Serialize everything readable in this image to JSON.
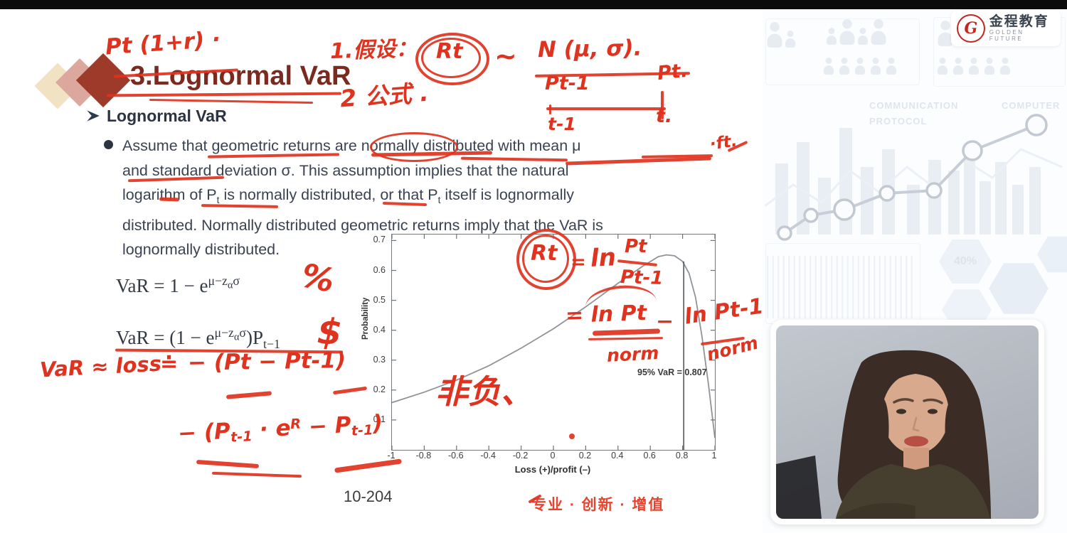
{
  "brand": {
    "name_cn": "金程教育",
    "name_en": "GOLDEN FUTURE"
  },
  "slide": {
    "title": "3.Lognormal VaR",
    "subtitle": "Lognormal VaR",
    "paragraph": {
      "l1": "Assume that geometric returns are normally distributed with mean μ",
      "l2": "and standard deviation σ. This assumption implies that the natural",
      "l3a": "logarithm of P",
      "l3s1": "t",
      "l3b": " is normally distributed, or that P",
      "l3s2": "t",
      "l3c": " itself is lognormally",
      "l4": "distributed. Normally distributed geometric returns imply that the VaR is",
      "l5": "lognormally distributed."
    },
    "formula1": {
      "base": "VaR = 1 − e",
      "expa": "μ−z",
      "expsub": "α",
      "expb": "σ"
    },
    "formula2": {
      "base1": "VaR = (1 − e",
      "expa": "μ−z",
      "expsub": "α",
      "expb": "σ",
      "base2": ")P",
      "sub": "t−1"
    },
    "page_number": "10-204",
    "slogan": "专业 · 创新 · 增值"
  },
  "chart_data": {
    "type": "line",
    "title": "",
    "xlabel": "Loss (+)/profit (–)",
    "ylabel": "Probability",
    "annotation": "95% VaR = 0.807",
    "xlim": [
      -1,
      1
    ],
    "ylim": [
      0,
      0.72
    ],
    "xticks": [
      -1,
      -0.8,
      -0.6,
      -0.4,
      -0.2,
      0,
      0.2,
      0.4,
      0.6,
      0.8,
      1
    ],
    "yticks": [
      0.1,
      0.2,
      0.3,
      0.4,
      0.5,
      0.6,
      0.7
    ],
    "grid": false,
    "legend": false,
    "var_line": {
      "x": 0.807,
      "y_top": 0.63
    },
    "series": [
      {
        "name": "lognormal loss distribution pdf",
        "points": [
          [
            -1,
            0.158
          ],
          [
            -0.8,
            0.193
          ],
          [
            -0.6,
            0.233
          ],
          [
            -0.4,
            0.281
          ],
          [
            -0.2,
            0.34
          ],
          [
            0,
            0.405
          ],
          [
            0.2,
            0.478
          ],
          [
            0.4,
            0.557
          ],
          [
            0.55,
            0.613
          ],
          [
            0.65,
            0.646
          ],
          [
            0.7,
            0.652
          ],
          [
            0.75,
            0.649
          ],
          [
            0.8,
            0.63
          ],
          [
            0.84,
            0.59
          ],
          [
            0.88,
            0.51
          ],
          [
            0.92,
            0.38
          ],
          [
            0.96,
            0.22
          ],
          [
            1,
            0.04
          ]
        ]
      }
    ]
  },
  "handwriting": {
    "above_title": "Pt (1+r) ·",
    "step1": "1.假设：",
    "rt": "Rt",
    "tilde": "~",
    "ndist": "N (μ, σ).",
    "step2": "2 公式 .",
    "p_prev": "Pt-1",
    "p_now": "Pt.",
    "t_prev": "t-1",
    "t_now": "t.",
    "ft": "·ft.",
    "pct": "%",
    "dollar": "$",
    "vl_a": "VaR ≈ loss",
    "vl_b": "≐",
    "vl_c": "− (Pt − Pt-1)",
    "pf_a": "− (P",
    "pf_s1": "t-1",
    "pf_b": " · e",
    "pf_sup": "R",
    "pf_c": " − P",
    "pf_s2": "t-1",
    "pf_d": ")",
    "rt2": "Rt",
    "eq": "=",
    "ln": "ln",
    "frac_num": "Pt",
    "frac_den": "Pt-1",
    "eq2a": "= ln Pt",
    "eq2b": "−",
    "eq2c": "ln Pt-1",
    "norm1": "norm",
    "norm2": "norm",
    "cn_note": "非负、"
  },
  "watermarks": {
    "w1": "COMMUNICATION",
    "w2": "PROTOCOL",
    "w3": "COMPUTER",
    "w4": "40%"
  }
}
